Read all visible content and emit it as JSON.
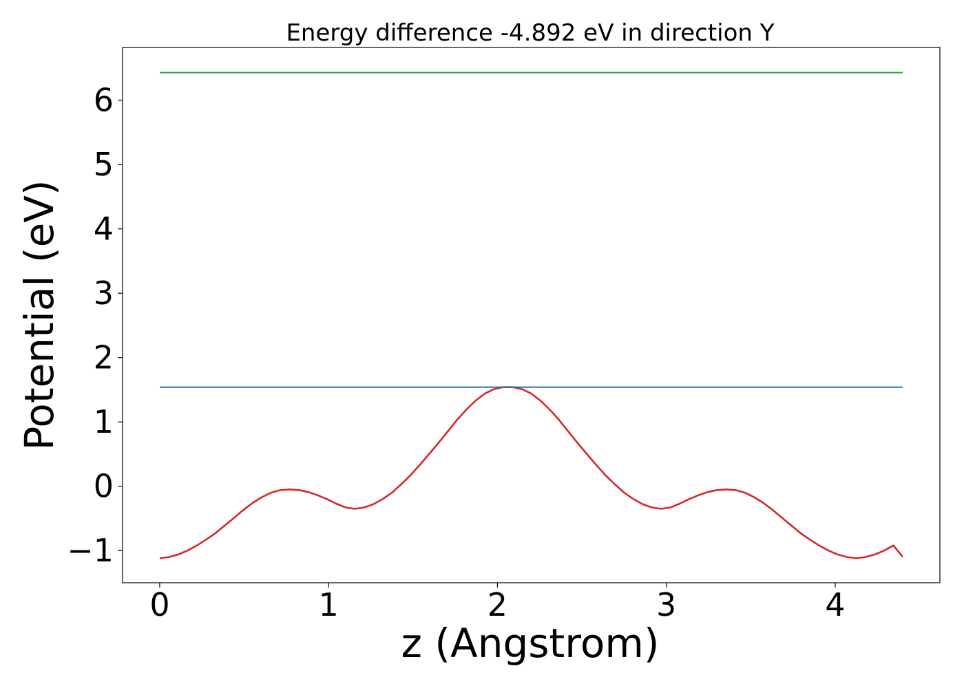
{
  "chart_data": {
    "type": "line",
    "title": "Energy difference -4.892 eV in direction Y",
    "xlabel": "z (Angstrom)",
    "ylabel": "Potential (eV)",
    "xlim": [
      -0.22,
      4.62
    ],
    "ylim": [
      -1.5,
      6.82
    ],
    "xticks": [
      0,
      1,
      2,
      3,
      4
    ],
    "yticks": [
      -1,
      0,
      1,
      2,
      3,
      4,
      5,
      6
    ],
    "xtick_labels": [
      "0",
      "1",
      "2",
      "3",
      "4"
    ],
    "ytick_labels": [
      "−1",
      "0",
      "1",
      "2",
      "3",
      "4",
      "5",
      "6"
    ],
    "grid": false,
    "series": [
      {
        "color": "#d62728",
        "x": [
          0.0,
          0.055,
          0.11,
          0.165,
          0.22,
          0.275,
          0.33,
          0.385,
          0.44,
          0.495,
          0.55,
          0.605,
          0.66,
          0.715,
          0.77,
          0.825,
          0.88,
          0.935,
          0.99,
          1.045,
          1.1,
          1.155,
          1.21,
          1.265,
          1.32,
          1.375,
          1.43,
          1.485,
          1.54,
          1.595,
          1.65,
          1.705,
          1.76,
          1.815,
          1.87,
          1.925,
          1.98,
          2.035,
          2.09,
          2.145,
          2.2,
          2.255,
          2.31,
          2.365,
          2.42,
          2.475,
          2.53,
          2.585,
          2.64,
          2.695,
          2.75,
          2.805,
          2.86,
          2.915,
          2.97,
          3.025,
          3.08,
          3.135,
          3.19,
          3.245,
          3.3,
          3.355,
          3.41,
          3.465,
          3.52,
          3.575,
          3.63,
          3.685,
          3.74,
          3.795,
          3.85,
          3.905,
          3.96,
          4.015,
          4.07,
          4.125,
          4.18,
          4.235,
          4.29,
          4.345,
          4.4
        ],
        "y": [
          -1.12,
          -1.1,
          -1.06,
          -1.0,
          -0.92,
          -0.83,
          -0.73,
          -0.61,
          -0.49,
          -0.37,
          -0.26,
          -0.17,
          -0.1,
          -0.06,
          -0.05,
          -0.06,
          -0.09,
          -0.14,
          -0.2,
          -0.27,
          -0.33,
          -0.35,
          -0.33,
          -0.28,
          -0.2,
          -0.1,
          0.03,
          0.17,
          0.33,
          0.5,
          0.67,
          0.85,
          1.03,
          1.19,
          1.33,
          1.44,
          1.51,
          1.54,
          1.54,
          1.51,
          1.44,
          1.33,
          1.19,
          1.03,
          0.85,
          0.67,
          0.5,
          0.33,
          0.17,
          0.03,
          -0.1,
          -0.2,
          -0.28,
          -0.33,
          -0.35,
          -0.33,
          -0.27,
          -0.2,
          -0.14,
          -0.09,
          -0.06,
          -0.05,
          -0.06,
          -0.1,
          -0.17,
          -0.26,
          -0.37,
          -0.49,
          -0.61,
          -0.73,
          -0.83,
          -0.92,
          -1.0,
          -1.06,
          -1.1,
          -1.12,
          -1.1,
          -1.06,
          -1.0,
          -0.92,
          -1.1
        ]
      },
      {
        "color": "#1f77b4",
        "x": [
          0.0,
          4.4
        ],
        "y": [
          1.54,
          1.54
        ]
      },
      {
        "color": "#2ca02c",
        "x": [
          0.0,
          4.4
        ],
        "y": [
          6.43,
          6.43
        ]
      }
    ]
  }
}
